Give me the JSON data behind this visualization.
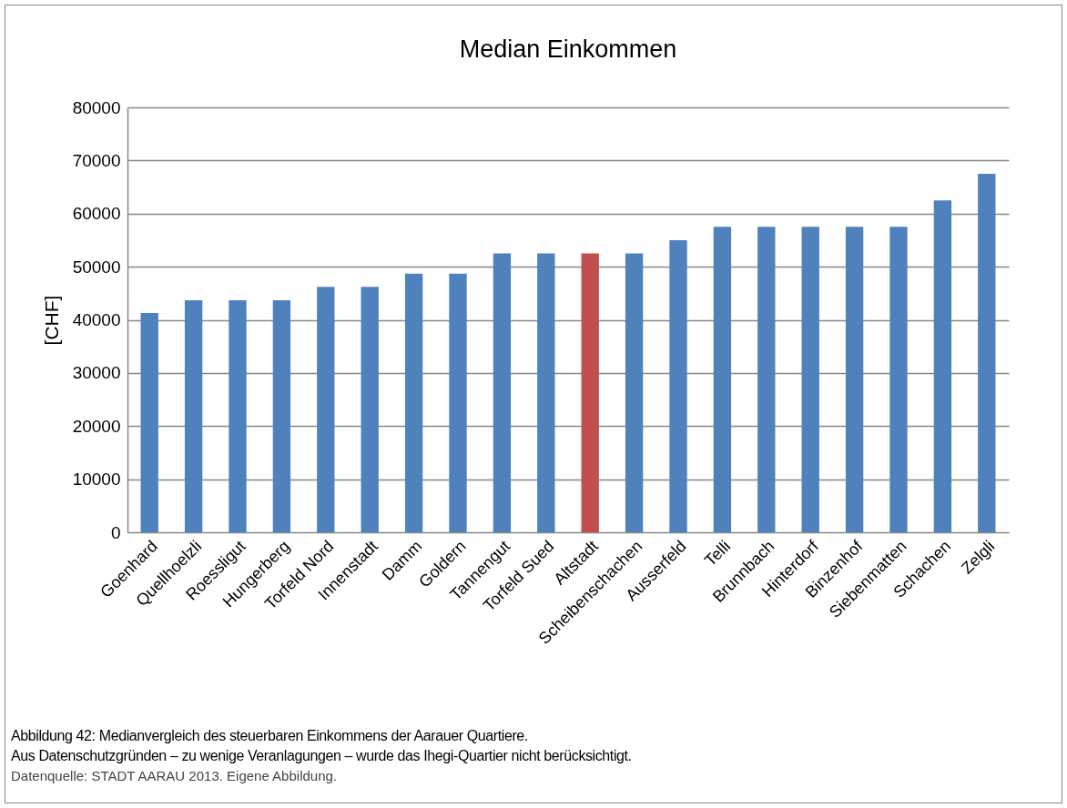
{
  "chart_data": {
    "type": "bar",
    "title": "Median Einkommen",
    "ylabel": "[CHF]",
    "categories": [
      "Goenhard",
      "Quellhoelzli",
      "Roessligut",
      "Hungerberg",
      "Torfeld Nord",
      "Innenstadt",
      "Damm",
      "Goldern",
      "Tannengut",
      "Torfeld Sued",
      "Altstadt",
      "Scheibenschachen",
      "Ausserfeld",
      "Telli",
      "Brunnbach",
      "Hinterdorf",
      "Binzenhof",
      "Siebenmatten",
      "Schachen",
      "Zelgli"
    ],
    "values": [
      41300,
      43700,
      43700,
      43700,
      46200,
      46200,
      48700,
      48700,
      52500,
      52500,
      52500,
      52500,
      55000,
      57500,
      57500,
      57500,
      57500,
      57500,
      62500,
      67500
    ],
    "colors": [
      "#4f81bd",
      "#4f81bd",
      "#4f81bd",
      "#4f81bd",
      "#4f81bd",
      "#4f81bd",
      "#4f81bd",
      "#4f81bd",
      "#4f81bd",
      "#4f81bd",
      "#c0504d",
      "#4f81bd",
      "#4f81bd",
      "#4f81bd",
      "#4f81bd",
      "#4f81bd",
      "#4f81bd",
      "#4f81bd",
      "#4f81bd",
      "#4f81bd"
    ],
    "ylim": [
      0,
      80000
    ],
    "yticks": [
      0,
      10000,
      20000,
      30000,
      40000,
      50000,
      60000,
      70000,
      80000
    ],
    "grid": "y",
    "annotations": [
      "Abbildung 42: Medianvergleich des steuerbaren Einkommens der Aarauer Quartiere.",
      "Aus Datenschutzgründen – zu wenige Veranlagungen – wurde das Ihegi-Quartier nicht berücksichtigt.",
      "Datenquelle: STADT AARAU 2013. Eigene Abbildung."
    ]
  }
}
